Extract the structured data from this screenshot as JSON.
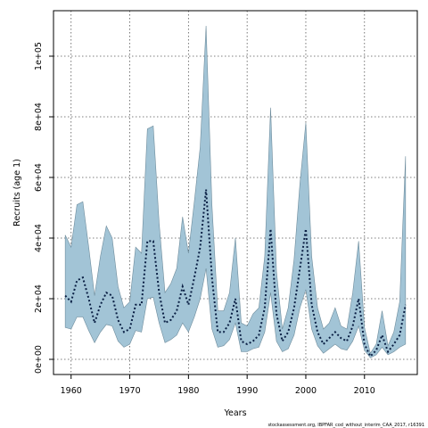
{
  "chart_data": {
    "type": "area",
    "xlabel": "Years",
    "ylabel": "Recruits (age 1)",
    "xlim": [
      1957,
      2019
    ],
    "ylim": [
      -5000,
      115000
    ],
    "grid": true,
    "x_ticks": [
      1960,
      1970,
      1980,
      1990,
      2000,
      2010
    ],
    "x_tick_labels": [
      "1960",
      "1970",
      "1980",
      "1990",
      "2000",
      "2010"
    ],
    "y_ticks": [
      0,
      20000,
      40000,
      60000,
      80000,
      100000
    ],
    "y_tick_labels": [
      "0e+00",
      "2e+04",
      "4e+04",
      "6e+04",
      "8e+04",
      "1e+05"
    ],
    "colors": {
      "band_fill": "#a2c4d6",
      "band_edge": "#6e8c9c",
      "median_line": "#0a1f44"
    },
    "x": [
      1959,
      1960,
      1961,
      1962,
      1963,
      1964,
      1965,
      1966,
      1967,
      1968,
      1969,
      1970,
      1971,
      1972,
      1973,
      1974,
      1975,
      1976,
      1977,
      1978,
      1979,
      1980,
      1981,
      1982,
      1983,
      1984,
      1985,
      1986,
      1987,
      1988,
      1989,
      1990,
      1991,
      1992,
      1993,
      1994,
      1995,
      1996,
      1997,
      1998,
      1999,
      2000,
      2001,
      2002,
      2003,
      2004,
      2005,
      2006,
      2007,
      2008,
      2009,
      2010,
      2011,
      2012,
      2013,
      2014,
      2015,
      2016,
      2017
    ],
    "series": [
      {
        "values": [
          21000,
          19000,
          26000,
          27000,
          20000,
          12000,
          18000,
          22000,
          21000,
          13000,
          9000,
          10000,
          18000,
          18000,
          39000,
          39000,
          22000,
          12000,
          13000,
          16000,
          24000,
          18000,
          27000,
          37000,
          56000,
          27000,
          9000,
          9000,
          12000,
          20000,
          6000,
          5000,
          6000,
          8000,
          17000,
          43000,
          15000,
          6000,
          9000,
          17000,
          30000,
          43000,
          18000,
          9000,
          5000,
          7000,
          9000,
          7000,
          6000,
          11000,
          20000,
          5000,
          1000,
          3000,
          8000,
          2500,
          5000,
          8000,
          18000
        ]
      },
      {
        "values": [
          10500,
          10000,
          14000,
          14000,
          9500,
          5500,
          9000,
          11500,
          11000,
          6000,
          4000,
          5000,
          9500,
          9000,
          20000,
          20500,
          12000,
          5500,
          6500,
          8000,
          12000,
          9000,
          14000,
          20000,
          30000,
          10000,
          4000,
          4500,
          6500,
          12000,
          2500,
          2500,
          3500,
          4000,
          9000,
          22000,
          6000,
          2500,
          3500,
          8000,
          17000,
          23000,
          10000,
          4500,
          2000,
          3500,
          5000,
          3500,
          3000,
          6000,
          11000,
          3000,
          500,
          1500,
          4000,
          1500,
          2500,
          4000,
          5000
        ]
      },
      {
        "values": [
          41000,
          37000,
          51000,
          52000,
          37000,
          21000,
          34000,
          44000,
          40000,
          24000,
          17000,
          19000,
          37000,
          35000,
          76000,
          77000,
          45000,
          22000,
          25000,
          30000,
          47000,
          35000,
          52000,
          70000,
          110000,
          51000,
          16000,
          16000,
          22000,
          40000,
          12000,
          11000,
          15000,
          17000,
          34000,
          83000,
          29000,
          10000,
          17000,
          33000,
          58000,
          78000,
          34000,
          17000,
          10000,
          12000,
          17000,
          11000,
          10000,
          22000,
          39000,
          10500,
          2000,
          5000,
          16000,
          4500,
          9000,
          19000,
          67000
        ]
      }
    ]
  },
  "footer_text": "stockassessment.org, IBPFAR_cod_without_interim_CAA_2017, r16391"
}
